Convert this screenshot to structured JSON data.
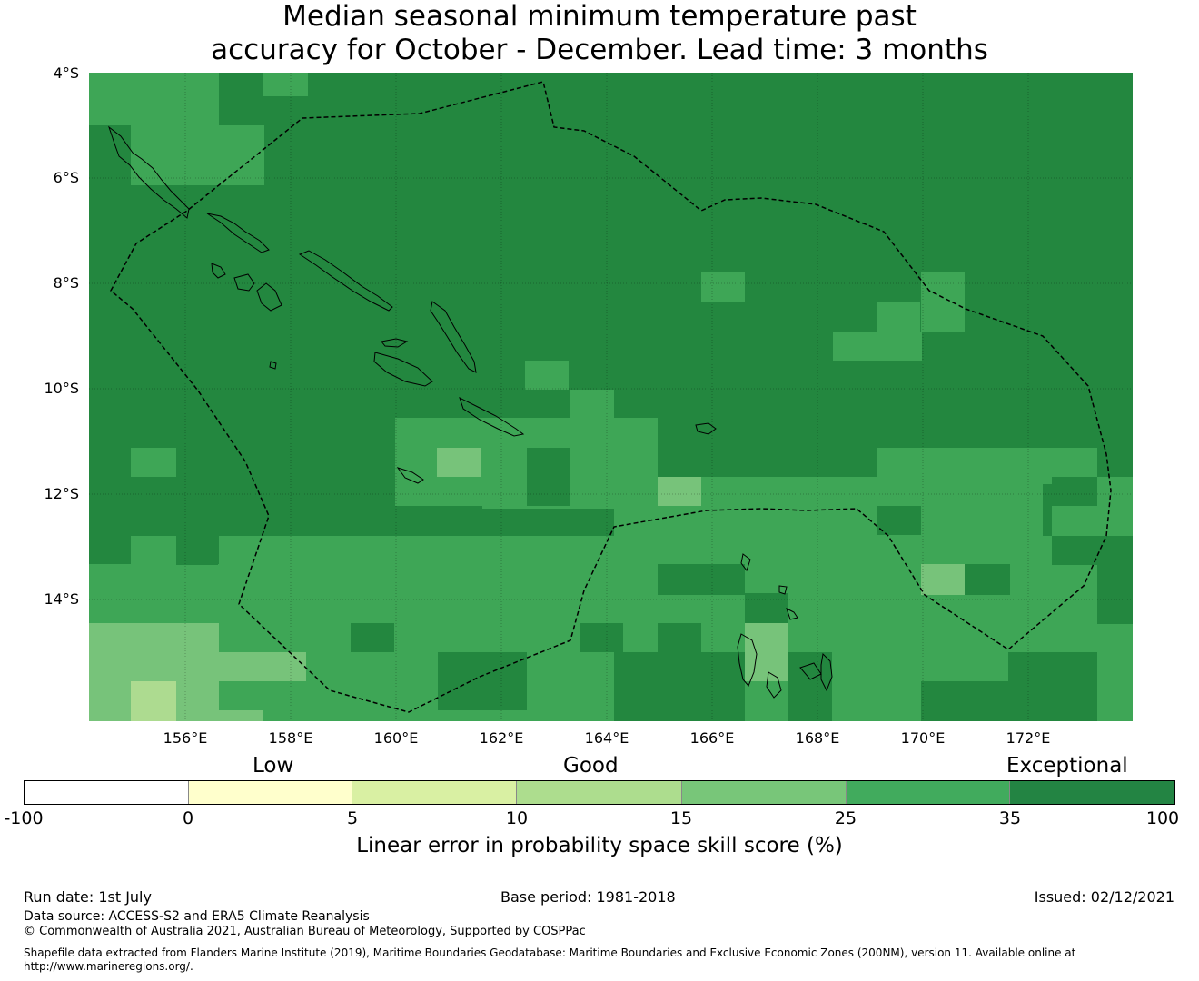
{
  "title": {
    "line1": "Median seasonal minimum temperature past",
    "line2": "accuracy for October - December. Lead time: 3 months"
  },
  "map": {
    "lat_labels": [
      "4°S",
      "6°S",
      "8°S",
      "10°S",
      "12°S",
      "14°S"
    ],
    "lon_labels": [
      "156°E",
      "158°E",
      "160°E",
      "162°E",
      "164°E",
      "166°E",
      "168°E",
      "170°E",
      "172°E"
    ],
    "colors": {
      "exceptional_dark": "#23873F",
      "good_high": "#3EA656",
      "good_mid": "#77C37A",
      "good_low": "#ADDB90",
      "low": "#DBF0A5"
    }
  },
  "legend": {
    "categories": [
      "Low",
      "Good",
      "Exceptional"
    ],
    "ticks": [
      "-100",
      "0",
      "5",
      "10",
      "15",
      "25",
      "35",
      "100"
    ],
    "colors": [
      "#FFFFFF",
      "#FFFFCC",
      "#D9F0A3",
      "#ADDD8E",
      "#78C679",
      "#41AB5D",
      "#238443"
    ],
    "title": "Linear error in probability space skill score (%)"
  },
  "footer": {
    "run_date": "Run date: 1st July",
    "base_period": "Base period: 1981-2018",
    "issued": "Issued: 02/12/2021",
    "data_source": "Data source: ACCESS-S2 and ERA5 Climate Reanalysis",
    "copyright": "© Commonwealth of Australia 2021, Australian Bureau of Meteorology, Supported by COSPPac",
    "shapefile_line1": "Shapefile data extracted from Flanders Marine Institute (2019), Maritime Boundaries Geodatabase: Maritime Boundaries and Exclusive Economic Zones (200NM), version 11. Available online at",
    "shapefile_line2": "http://www.marineregions.org/."
  }
}
